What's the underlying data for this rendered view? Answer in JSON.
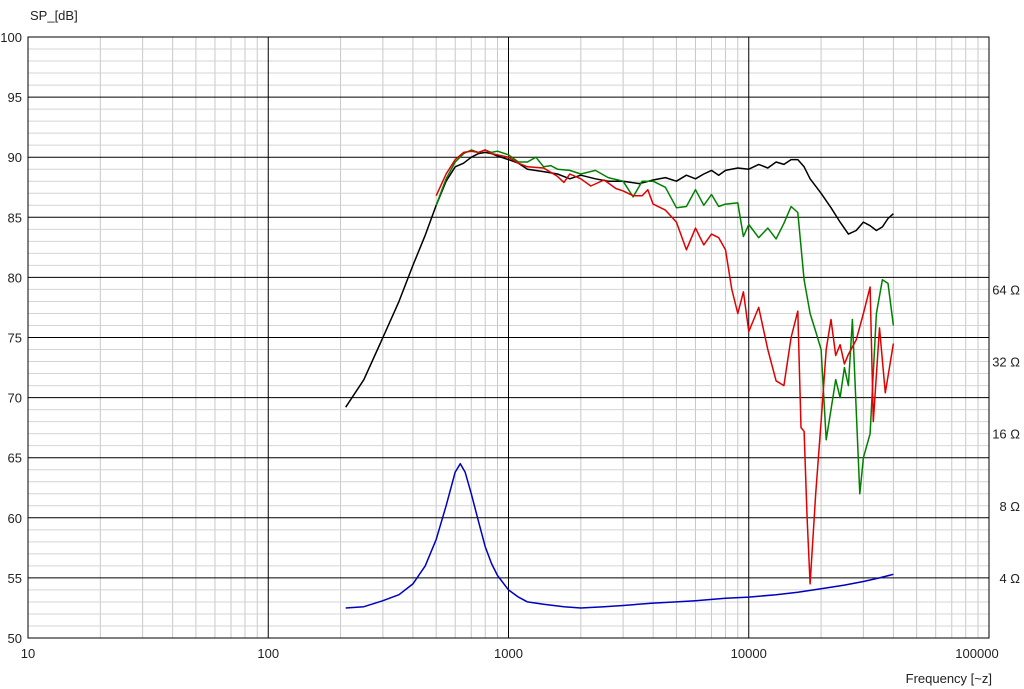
{
  "chart_data": {
    "type": "line",
    "ylabel": "SP_[dB]",
    "xlabel": "Frequency [~z]",
    "x_scale": "log",
    "xlim": [
      10,
      100000
    ],
    "ylim": [
      50,
      100
    ],
    "x_ticks": [
      {
        "value": 10,
        "label": "10"
      },
      {
        "value": 100,
        "label": "100"
      },
      {
        "value": 1000,
        "label": "1000"
      },
      {
        "value": 10000,
        "label": "10000"
      },
      {
        "value": 100000,
        "label": "100000"
      }
    ],
    "y_ticks": [
      50,
      55,
      60,
      65,
      70,
      75,
      80,
      85,
      90,
      95,
      100
    ],
    "y2_ticks": [
      {
        "label": "4 Ω",
        "at_db": 55
      },
      {
        "label": "8 Ω",
        "at_db": 61
      },
      {
        "label": "16 Ω",
        "at_db": 67
      },
      {
        "label": "32 Ω",
        "at_db": 73
      },
      {
        "label": "64 Ω",
        "at_db": 79
      }
    ],
    "grid": true,
    "series": [
      {
        "color": "#000000",
        "axis": "left",
        "points": [
          [
            210,
            69.2
          ],
          [
            250,
            71.5
          ],
          [
            300,
            75
          ],
          [
            350,
            78
          ],
          [
            400,
            81
          ],
          [
            450,
            83.5
          ],
          [
            500,
            86
          ],
          [
            550,
            88
          ],
          [
            600,
            89.2
          ],
          [
            650,
            89.5
          ],
          [
            700,
            90.0
          ],
          [
            750,
            90.3
          ],
          [
            800,
            90.4
          ],
          [
            850,
            90.3
          ],
          [
            900,
            90.1
          ],
          [
            1000,
            89.8
          ],
          [
            1100,
            89.5
          ],
          [
            1200,
            89.0
          ],
          [
            1400,
            88.8
          ],
          [
            1600,
            88.6
          ],
          [
            1800,
            88.2
          ],
          [
            2000,
            88.5
          ],
          [
            2300,
            88.2
          ],
          [
            2600,
            88.0
          ],
          [
            3000,
            88.0
          ],
          [
            3500,
            87.8
          ],
          [
            4000,
            88.1
          ],
          [
            4500,
            88.3
          ],
          [
            5000,
            88.0
          ],
          [
            5500,
            88.5
          ],
          [
            6000,
            88.2
          ],
          [
            6500,
            88.6
          ],
          [
            7000,
            88.9
          ],
          [
            7500,
            88.5
          ],
          [
            8000,
            88.9
          ],
          [
            9000,
            89.1
          ],
          [
            10000,
            89.0
          ],
          [
            11000,
            89.4
          ],
          [
            12000,
            89.1
          ],
          [
            13000,
            89.6
          ],
          [
            14000,
            89.4
          ],
          [
            15000,
            89.8
          ],
          [
            16000,
            89.8
          ],
          [
            17000,
            89.2
          ],
          [
            18000,
            88.2
          ],
          [
            20000,
            87.0
          ],
          [
            22000,
            85.8
          ],
          [
            24000,
            84.6
          ],
          [
            26000,
            83.6
          ],
          [
            28000,
            83.9
          ],
          [
            30000,
            84.6
          ],
          [
            32000,
            84.3
          ],
          [
            34000,
            83.9
          ],
          [
            36000,
            84.2
          ],
          [
            38000,
            84.9
          ],
          [
            40000,
            85.3
          ]
        ]
      },
      {
        "color": "#008000",
        "axis": "left",
        "points": [
          [
            500,
            86.0
          ],
          [
            550,
            88.2
          ],
          [
            600,
            89.6
          ],
          [
            650,
            90.3
          ],
          [
            700,
            90.6
          ],
          [
            750,
            90.4
          ],
          [
            800,
            90.6
          ],
          [
            850,
            90.4
          ],
          [
            900,
            90.5
          ],
          [
            1000,
            90.2
          ],
          [
            1100,
            89.6
          ],
          [
            1200,
            89.6
          ],
          [
            1300,
            90.0
          ],
          [
            1400,
            89.2
          ],
          [
            1500,
            89.3
          ],
          [
            1600,
            89.0
          ],
          [
            1800,
            88.9
          ],
          [
            2000,
            88.6
          ],
          [
            2300,
            88.9
          ],
          [
            2600,
            88.3
          ],
          [
            3000,
            88.0
          ],
          [
            3300,
            86.7
          ],
          [
            3600,
            88.0
          ],
          [
            4000,
            88.0
          ],
          [
            4500,
            87.5
          ],
          [
            5000,
            85.8
          ],
          [
            5500,
            85.9
          ],
          [
            6000,
            87.3
          ],
          [
            6500,
            86.0
          ],
          [
            7000,
            86.9
          ],
          [
            7500,
            85.9
          ],
          [
            8000,
            86.1
          ],
          [
            9000,
            86.2
          ],
          [
            9500,
            83.4
          ],
          [
            10000,
            84.4
          ],
          [
            11000,
            83.3
          ],
          [
            12000,
            84.1
          ],
          [
            13000,
            83.2
          ],
          [
            14000,
            84.5
          ],
          [
            15000,
            85.9
          ],
          [
            16000,
            85.4
          ],
          [
            17000,
            79.8
          ],
          [
            18000,
            77.0
          ],
          [
            19000,
            75.5
          ],
          [
            20000,
            74.0
          ],
          [
            21000,
            66.5
          ],
          [
            22000,
            69.0
          ],
          [
            23000,
            71.5
          ],
          [
            24000,
            70.0
          ],
          [
            25000,
            72.5
          ],
          [
            26000,
            71.0
          ],
          [
            27000,
            76.5
          ],
          [
            28000,
            69.0
          ],
          [
            29000,
            62.0
          ],
          [
            30000,
            65.0
          ],
          [
            32000,
            67.0
          ],
          [
            34000,
            77.0
          ],
          [
            36000,
            79.8
          ],
          [
            38000,
            79.5
          ],
          [
            40000,
            76.0
          ]
        ]
      },
      {
        "color": "#e00000",
        "axis": "left",
        "points": [
          [
            500,
            86.8
          ],
          [
            550,
            88.6
          ],
          [
            600,
            89.8
          ],
          [
            650,
            90.4
          ],
          [
            700,
            90.5
          ],
          [
            750,
            90.4
          ],
          [
            800,
            90.6
          ],
          [
            850,
            90.3
          ],
          [
            900,
            90.2
          ],
          [
            1000,
            90.0
          ],
          [
            1100,
            89.5
          ],
          [
            1200,
            89.2
          ],
          [
            1400,
            89.1
          ],
          [
            1600,
            88.4
          ],
          [
            1700,
            87.9
          ],
          [
            1800,
            88.6
          ],
          [
            2000,
            88.2
          ],
          [
            2200,
            87.6
          ],
          [
            2500,
            88.1
          ],
          [
            2800,
            87.4
          ],
          [
            3000,
            87.2
          ],
          [
            3300,
            86.8
          ],
          [
            3600,
            86.8
          ],
          [
            3800,
            87.3
          ],
          [
            4000,
            86.1
          ],
          [
            4500,
            85.6
          ],
          [
            5000,
            84.6
          ],
          [
            5500,
            82.3
          ],
          [
            6000,
            84.1
          ],
          [
            6500,
            82.7
          ],
          [
            7000,
            83.6
          ],
          [
            7500,
            83.3
          ],
          [
            8000,
            82.3
          ],
          [
            8500,
            79.0
          ],
          [
            9000,
            77.0
          ],
          [
            9500,
            78.8
          ],
          [
            10000,
            75.5
          ],
          [
            11000,
            77.5
          ],
          [
            12000,
            74.0
          ],
          [
            13000,
            71.4
          ],
          [
            14000,
            71.0
          ],
          [
            15000,
            75.0
          ],
          [
            16000,
            77.2
          ],
          [
            16500,
            67.5
          ],
          [
            17000,
            67.2
          ],
          [
            17500,
            60.0
          ],
          [
            18000,
            54.5
          ],
          [
            19000,
            62.0
          ],
          [
            20000,
            68.0
          ],
          [
            21000,
            74.0
          ],
          [
            22000,
            76.5
          ],
          [
            23000,
            73.5
          ],
          [
            24000,
            74.4
          ],
          [
            25000,
            72.8
          ],
          [
            26000,
            73.6
          ],
          [
            28000,
            74.8
          ],
          [
            30000,
            77.0
          ],
          [
            32000,
            79.2
          ],
          [
            33000,
            68.0
          ],
          [
            35000,
            75.8
          ],
          [
            37000,
            70.4
          ],
          [
            40000,
            74.5
          ]
        ]
      },
      {
        "color": "#0000c0",
        "axis": "right",
        "points": [
          [
            210,
            52.5
          ],
          [
            250,
            52.6
          ],
          [
            300,
            53.1
          ],
          [
            350,
            53.6
          ],
          [
            400,
            54.5
          ],
          [
            450,
            56.0
          ],
          [
            500,
            58.2
          ],
          [
            550,
            61.0
          ],
          [
            600,
            63.8
          ],
          [
            630,
            64.5
          ],
          [
            660,
            63.8
          ],
          [
            700,
            62.0
          ],
          [
            750,
            59.7
          ],
          [
            800,
            57.6
          ],
          [
            850,
            56.2
          ],
          [
            900,
            55.2
          ],
          [
            1000,
            54.0
          ],
          [
            1100,
            53.4
          ],
          [
            1200,
            53.0
          ],
          [
            1400,
            52.8
          ],
          [
            1700,
            52.6
          ],
          [
            2000,
            52.5
          ],
          [
            2500,
            52.6
          ],
          [
            3000,
            52.7
          ],
          [
            4000,
            52.9
          ],
          [
            5000,
            53.0
          ],
          [
            6000,
            53.1
          ],
          [
            8000,
            53.3
          ],
          [
            10000,
            53.4
          ],
          [
            13000,
            53.6
          ],
          [
            16000,
            53.8
          ],
          [
            20000,
            54.1
          ],
          [
            25000,
            54.4
          ],
          [
            30000,
            54.7
          ],
          [
            35000,
            55.0
          ],
          [
            40000,
            55.3
          ]
        ]
      }
    ]
  }
}
